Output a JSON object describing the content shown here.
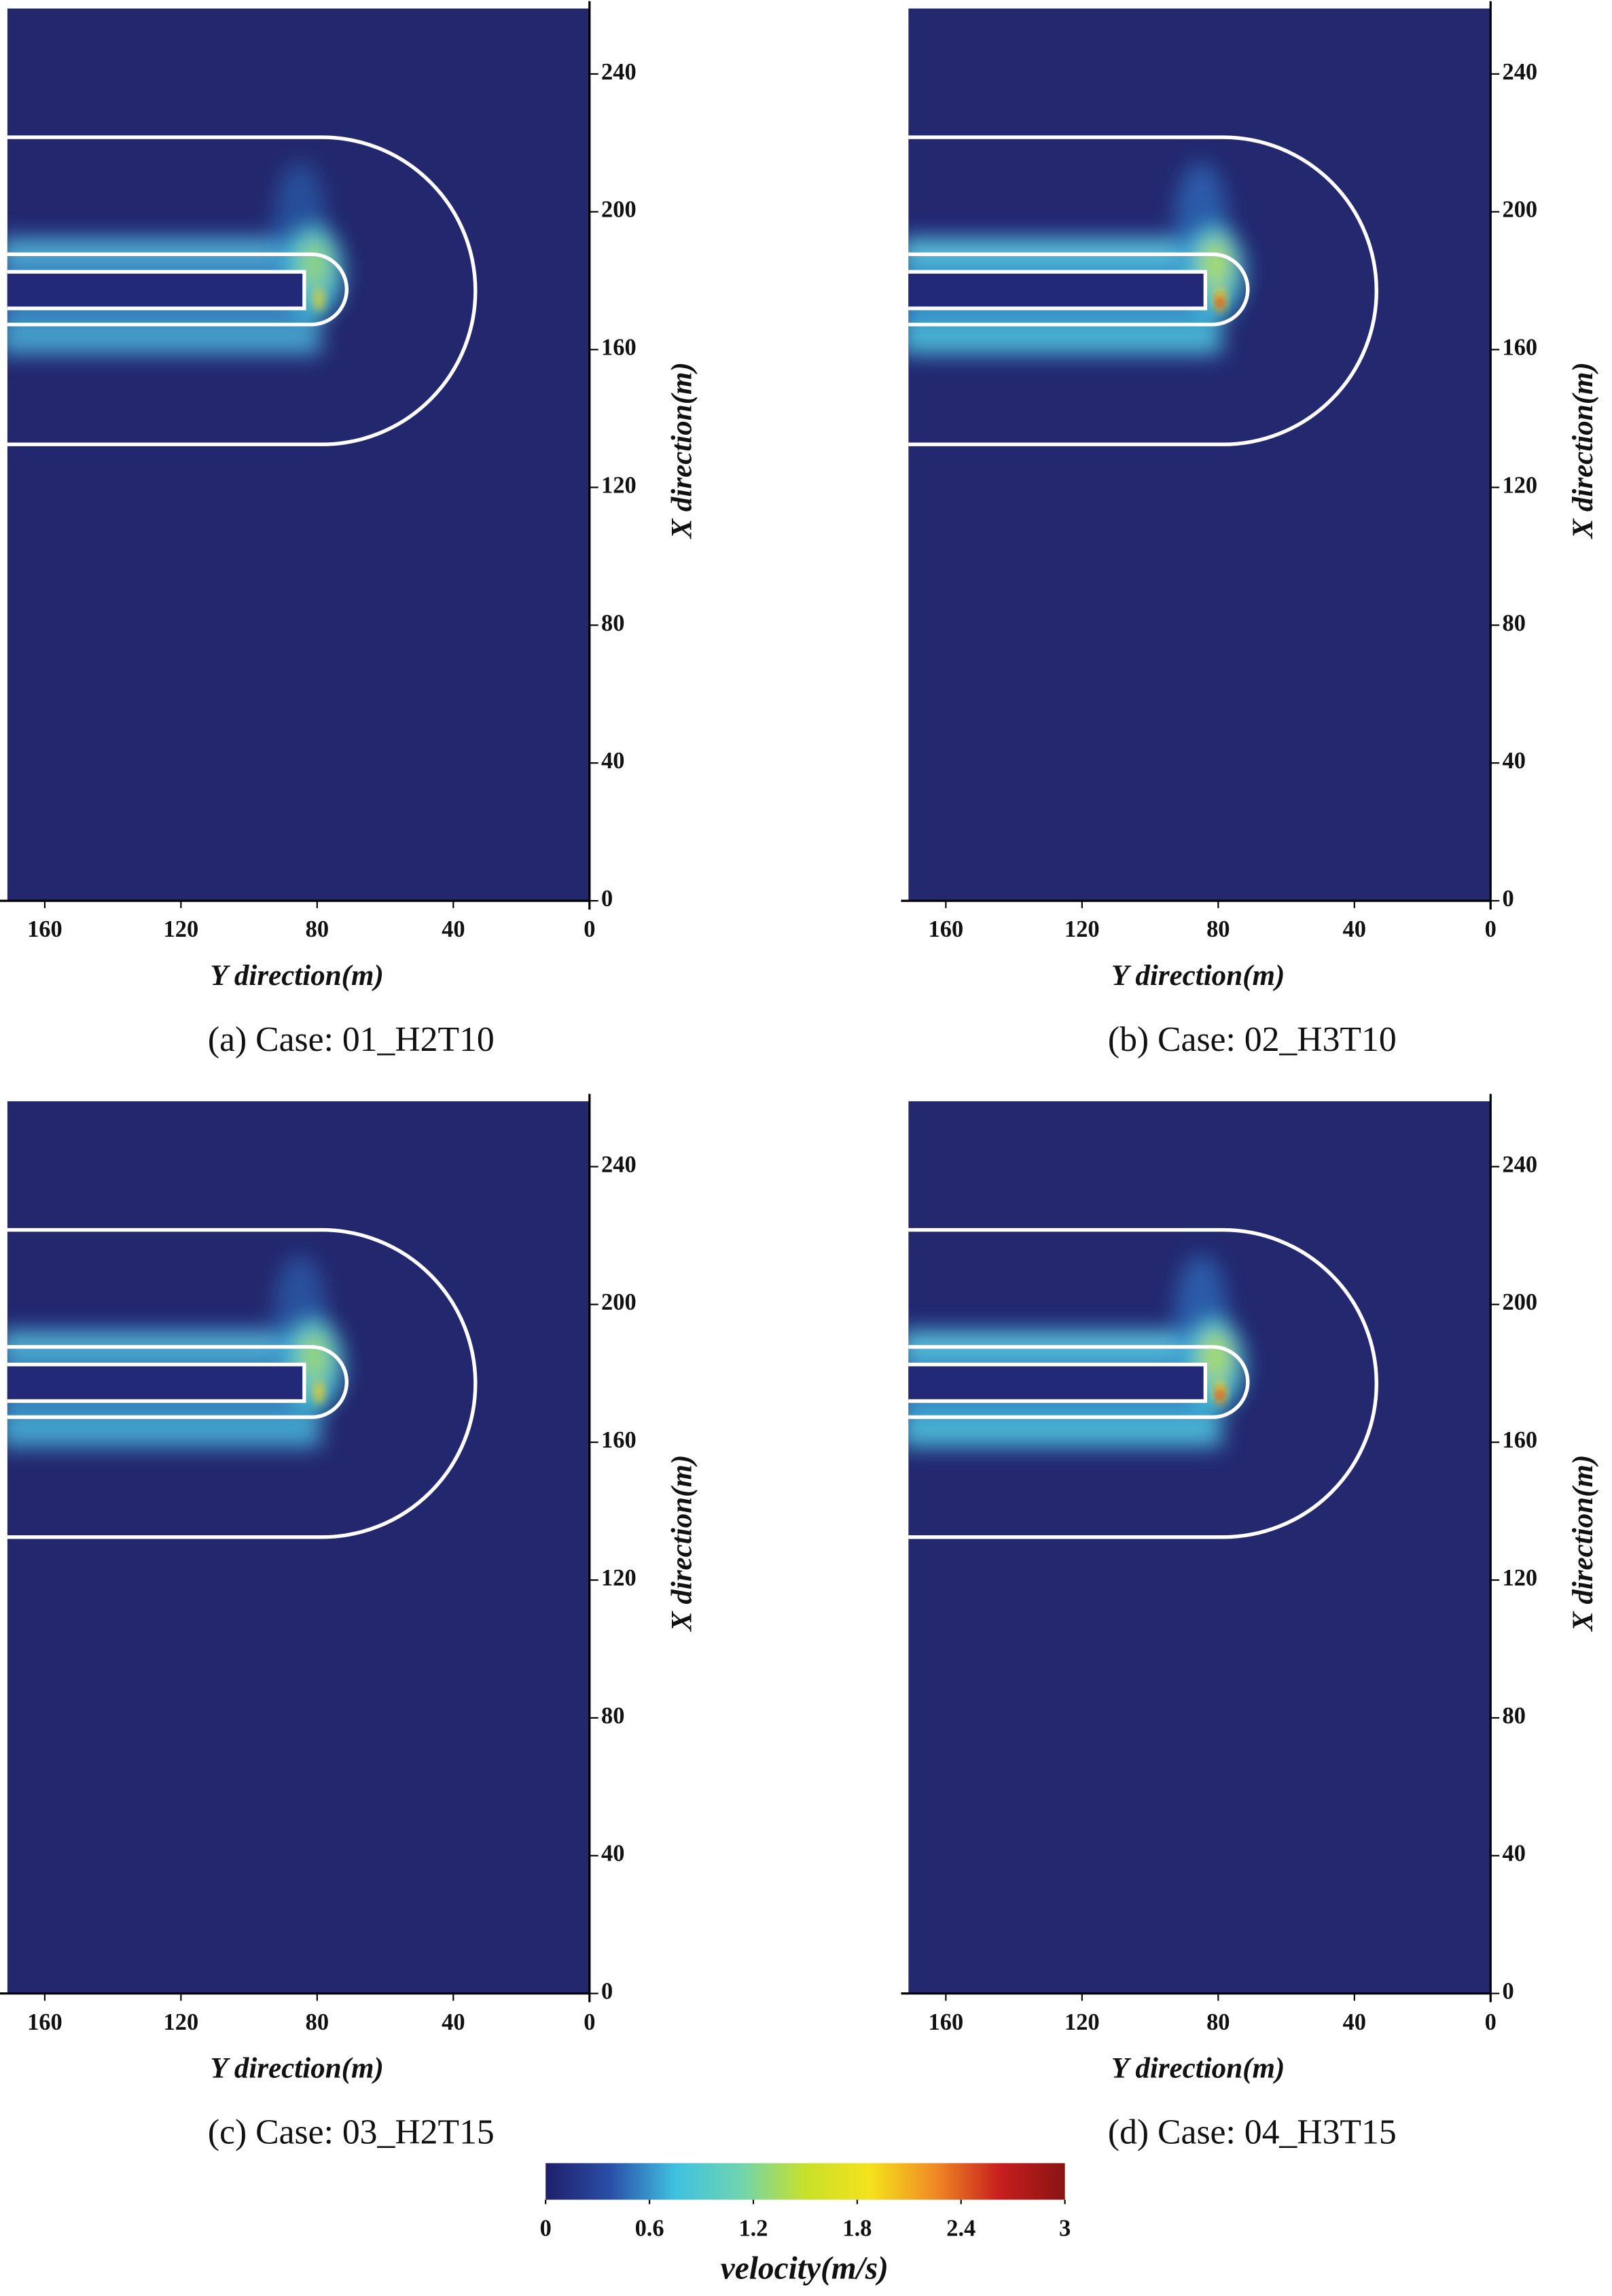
{
  "chart_data": [
    {
      "type": "contour",
      "caption": "(a)  Case:  01_H2T10",
      "xlabel": "Y direction(m)",
      "ylabel": "X direction(m)",
      "xlim": [
        171,
        0
      ],
      "ylim": [
        0,
        259
      ],
      "xticks": [
        160,
        120,
        80,
        40,
        0
      ],
      "yticks": [
        0,
        40,
        80,
        120,
        160,
        200,
        240
      ],
      "background": "#23276d"
    },
    {
      "type": "contour",
      "caption": "(b)  Case:  02_H3T10",
      "xlabel": "Y direction(m)",
      "ylabel": "X direction(m)",
      "xlim": [
        171,
        0
      ],
      "ylim": [
        0,
        259
      ],
      "xticks": [
        160,
        120,
        80,
        40,
        0
      ],
      "yticks": [
        0,
        40,
        80,
        120,
        160,
        200,
        240
      ],
      "background": "#23286f"
    },
    {
      "type": "contour",
      "caption": "(c)  Case:  03_H2T15",
      "xlabel": "Y direction(m)",
      "ylabel": "X direction(m)",
      "xlim": [
        171,
        0
      ],
      "ylim": [
        0,
        259
      ],
      "xticks": [
        160,
        120,
        80,
        40,
        0
      ],
      "yticks": [
        0,
        40,
        80,
        120,
        160,
        200,
        240
      ],
      "background": "#23276d"
    },
    {
      "type": "contour",
      "caption": "(d)  Case:  04_H3T15",
      "xlabel": "Y direction(m)",
      "ylabel": "X direction(m)",
      "xlim": [
        171,
        0
      ],
      "ylim": [
        0,
        259
      ],
      "xticks": [
        160,
        120,
        80,
        40,
        0
      ],
      "yticks": [
        0,
        40,
        80,
        120,
        160,
        200,
        240
      ],
      "background": "#23286f"
    }
  ],
  "colorbar": {
    "label": "velocity(m/s)",
    "lim": [
      0,
      3
    ],
    "ticks": [
      0,
      0.6,
      1.2,
      1.8,
      2.4,
      3
    ],
    "colors": [
      "#1f1f6a",
      "#2a4fa8",
      "#3fc1e0",
      "#6fd4b0",
      "#c8e02a",
      "#f5e21c",
      "#f08a24",
      "#c81e1e",
      "#8a1414"
    ]
  }
}
